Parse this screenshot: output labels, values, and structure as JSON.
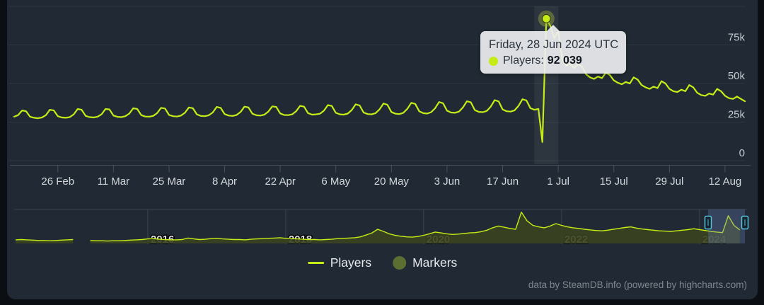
{
  "widget": {
    "background": "#212a34",
    "accent_line_color": "#c6ec17",
    "marker_series_color": "#5d6e33",
    "grid_color": "#2d3742",
    "axis_color": "#46505c",
    "navigator_fill": "#3a431f",
    "navigator_mask": "rgba(105,128,190,0.30)",
    "navigator_handle_stroke": "#55c4de"
  },
  "tooltip": {
    "title": "Friday, 28 Jun 2024 UTC",
    "series_label": "Players:",
    "value": "92 039"
  },
  "legend": {
    "players_label": "Players",
    "markers_label": "Markers"
  },
  "footer": {
    "credit": "data by SteamDB.info (powered by highcharts.com)"
  },
  "chart_data": {
    "type": "line",
    "title": "",
    "xlabel": "",
    "ylabel": "Players",
    "x_axis": {
      "start_date": "2024-02-15",
      "interval": "day",
      "tick_labels": [
        "26 Feb",
        "11 Mar",
        "25 Mar",
        "8 Apr",
        "22 Apr",
        "6 May",
        "20 May",
        "3 Jun",
        "17 Jun",
        "1 Jul",
        "15 Jul",
        "29 Jul",
        "12 Aug"
      ],
      "tick_offsets": [
        11,
        25,
        39,
        53,
        67,
        81,
        95,
        109,
        123,
        137,
        151,
        165,
        179
      ]
    },
    "y_axis": {
      "unit": "thousands of players",
      "range": [
        0,
        100
      ],
      "ticks": [
        {
          "value": 0,
          "label": "0"
        },
        {
          "value": 25,
          "label": "25k"
        },
        {
          "value": 50,
          "label": "50k"
        },
        {
          "value": 75,
          "label": "75k"
        },
        {
          "value": 100,
          "label": ""
        }
      ]
    },
    "selected_point": {
      "index": 134,
      "date": "Friday, 28 Jun 2024 UTC",
      "players": 92039
    },
    "series": [
      {
        "name": "Players",
        "color": "#c6ec17",
        "values_unit_thousands": true,
        "values": [
          28.5,
          29.5,
          32.5,
          32,
          28.5,
          27.8,
          27.5,
          28,
          29.5,
          33,
          32.5,
          28.8,
          28,
          27.8,
          28.2,
          30,
          33.5,
          33,
          29,
          28.2,
          28,
          28.5,
          30,
          33.5,
          33.2,
          29.2,
          28.4,
          28.2,
          28.8,
          30.5,
          34,
          33.5,
          29.5,
          28.6,
          28.5,
          29,
          30.8,
          34.2,
          33.8,
          29.6,
          28.8,
          28.6,
          29.2,
          31,
          34.5,
          34,
          30,
          29,
          28.8,
          29.4,
          31.2,
          34.8,
          34.2,
          30.2,
          29.2,
          29,
          29.6,
          31.5,
          35,
          34.5,
          30.4,
          29.4,
          29.2,
          29.8,
          31.8,
          35.2,
          34.8,
          30.6,
          29.6,
          29.5,
          30,
          32,
          35.5,
          35,
          30.8,
          29.8,
          30,
          30.4,
          32.4,
          36,
          35.4,
          31,
          30,
          29.8,
          30.5,
          32.8,
          36.5,
          35.8,
          31.2,
          30.2,
          30,
          30.8,
          33.2,
          37,
          36.2,
          31.5,
          30.4,
          30.2,
          31,
          33.6,
          37.5,
          36.8,
          32,
          30.8,
          30.5,
          31.4,
          34,
          38,
          37.2,
          32.4,
          31.2,
          31,
          31.8,
          34.5,
          38.5,
          37.8,
          32.8,
          31.6,
          31.4,
          32.2,
          35,
          39.2,
          38.4,
          33.2,
          32,
          31.8,
          32.6,
          35.5,
          39.8,
          39,
          34,
          33,
          33.5,
          12,
          92.039,
          87.5,
          79.5,
          84,
          66,
          61.5,
          63,
          60,
          62.5,
          61,
          56,
          54,
          53,
          54.5,
          53.5,
          57,
          55.5,
          52,
          50.5,
          49.5,
          51,
          50,
          54,
          52.5,
          49,
          47.5,
          46.5,
          48,
          47,
          51.5,
          50,
          46.5,
          45,
          44.5,
          46,
          45,
          49,
          47.5,
          44,
          42.5,
          42,
          43.5,
          42.8,
          46.5,
          45,
          42,
          40.5,
          40,
          41.5,
          40,
          38.5
        ]
      },
      {
        "name": "Markers",
        "color": "#5d6e33",
        "values": []
      }
    ],
    "navigator": {
      "start": "2014-02",
      "interval": "month",
      "year_labels": [
        "2016",
        "2018",
        "2020",
        "2022",
        "2024"
      ],
      "selected_range": [
        "2024-02-15",
        "2024-08-17"
      ],
      "values": [
        12,
        13,
        12,
        11,
        10,
        10,
        9,
        10,
        11,
        12,
        13,
        null,
        null,
        10,
        9,
        9,
        8,
        9,
        9,
        10,
        11,
        12,
        13,
        15,
        16,
        14,
        13,
        12,
        12,
        13,
        18,
        15,
        13,
        14,
        16,
        17,
        15,
        14,
        13,
        13,
        12,
        14,
        15,
        16,
        17,
        18,
        19,
        17,
        16,
        15,
        14,
        13,
        13,
        12,
        13,
        14,
        16,
        17,
        18,
        19,
        22,
        28,
        35,
        47,
        40,
        32,
        27,
        24,
        22,
        21,
        23,
        27,
        32,
        38,
        35,
        32,
        30,
        31,
        33,
        35,
        36,
        39,
        44,
        52,
        58,
        54,
        50,
        47,
        104,
        75,
        60,
        55,
        52,
        58,
        66,
        60,
        55,
        52,
        50,
        47,
        45,
        43,
        42,
        44,
        47,
        50,
        53,
        55,
        51,
        48,
        46,
        44,
        42,
        41,
        40,
        42,
        44,
        46,
        49,
        46,
        43,
        40,
        38,
        36,
        92,
        60,
        45
      ]
    }
  }
}
